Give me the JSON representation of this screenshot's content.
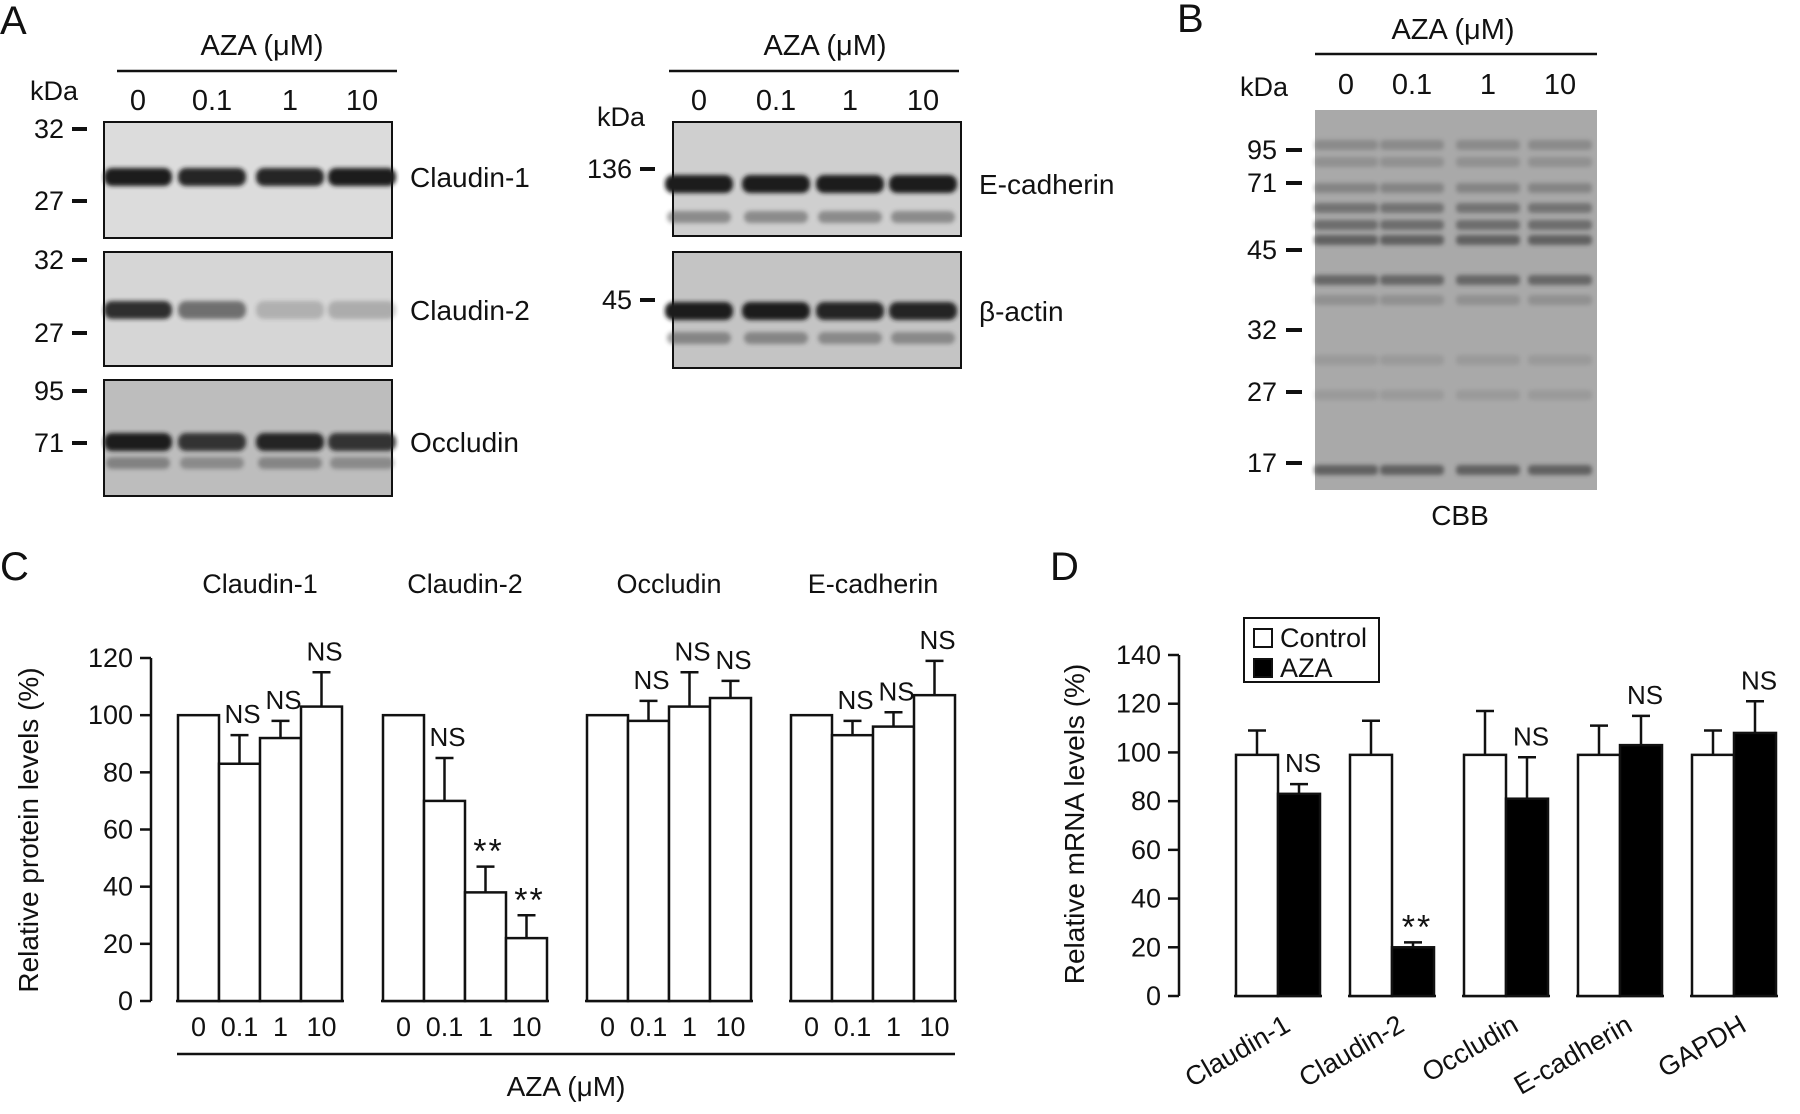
{
  "panelA": {
    "label": "A",
    "left": {
      "header": "AZA  (μM)",
      "kda": "kDa",
      "lanes": [
        "0",
        "0.1",
        "1",
        "10"
      ],
      "blots": [
        {
          "name": "Claudin-1",
          "markers": [
            "32",
            "27"
          ],
          "intensity": [
            1,
            0.95,
            0.95,
            1
          ]
        },
        {
          "name": "Claudin-2",
          "markers": [
            "32",
            "27"
          ],
          "intensity": [
            0.9,
            0.55,
            0.2,
            0.22
          ]
        },
        {
          "name": "Occludin",
          "markers": [
            "95",
            "71"
          ],
          "intensity": [
            1,
            0.85,
            0.95,
            0.85
          ]
        }
      ]
    },
    "right": {
      "header": "AZA  (μM)",
      "kda": "kDa",
      "lanes": [
        "0",
        "0.1",
        "1",
        "10"
      ],
      "blots": [
        {
          "name": "E-cadherin",
          "markers": [
            "136"
          ],
          "intensity": [
            1,
            1,
            1,
            1
          ]
        },
        {
          "name": "β-actin",
          "markers": [
            "45"
          ],
          "intensity": [
            1,
            1,
            0.95,
            0.95
          ]
        }
      ]
    }
  },
  "panelB": {
    "label": "B",
    "header": "AZA  (μM)",
    "kda": "kDa",
    "lanes": [
      "0",
      "0.1",
      "1",
      "10"
    ],
    "markers": [
      "95",
      "71",
      "45",
      "32",
      "27",
      "17"
    ],
    "caption": "CBB"
  },
  "chart_data": [
    {
      "panel": "C",
      "type": "bar",
      "ylabel": "Relative protein levels  (%)",
      "xlabel": "AZA  (μM)",
      "ylim": [
        0,
        120
      ],
      "yticks": [
        "0",
        "20",
        "40",
        "60",
        "80",
        "100",
        "120"
      ],
      "groups": [
        {
          "name": "Claudin-1",
          "categories": [
            "0",
            "0.1",
            "1",
            "10"
          ],
          "values": [
            100,
            83,
            92,
            103
          ],
          "errors": [
            0,
            10,
            6,
            12
          ],
          "marks": [
            "",
            "NS",
            "NS",
            "NS"
          ]
        },
        {
          "name": "Claudin-2",
          "categories": [
            "0",
            "0.1",
            "1",
            "10"
          ],
          "values": [
            100,
            70,
            38,
            22
          ],
          "errors": [
            0,
            15,
            9,
            8
          ],
          "marks": [
            "",
            "NS",
            "**",
            "**"
          ]
        },
        {
          "name": "Occludin",
          "categories": [
            "0",
            "0.1",
            "1",
            "10"
          ],
          "values": [
            100,
            98,
            103,
            106
          ],
          "errors": [
            0,
            7,
            12,
            6
          ],
          "marks": [
            "",
            "NS",
            "NS",
            "NS"
          ]
        },
        {
          "name": "E-cadherin",
          "categories": [
            "0",
            "0.1",
            "1",
            "10"
          ],
          "values": [
            100,
            93,
            96,
            107
          ],
          "errors": [
            0,
            5,
            5,
            12
          ],
          "marks": [
            "",
            "NS",
            "NS",
            "NS"
          ]
        }
      ]
    },
    {
      "panel": "D",
      "type": "bar",
      "ylabel": "Relative mRNA levels  (%)",
      "ylim": [
        0,
        140
      ],
      "yticks": [
        "0",
        "20",
        "40",
        "60",
        "80",
        "100",
        "120",
        "140"
      ],
      "legend": {
        "placement": "top-left",
        "entries": [
          "Control",
          "AZA"
        ]
      },
      "categories": [
        "Claudin-1",
        "Claudin-2",
        "Occludin",
        "E-cadherin",
        "GAPDH"
      ],
      "series": [
        {
          "name": "Control",
          "values": [
            99,
            99,
            99,
            99,
            99
          ],
          "errors": [
            10,
            14,
            18,
            12,
            10
          ]
        },
        {
          "name": "AZA",
          "values": [
            83,
            20,
            81,
            103,
            108
          ],
          "errors": [
            4,
            2,
            17,
            12,
            13
          ]
        }
      ],
      "marks": [
        "NS",
        "**",
        "NS",
        "NS",
        "NS"
      ]
    }
  ]
}
